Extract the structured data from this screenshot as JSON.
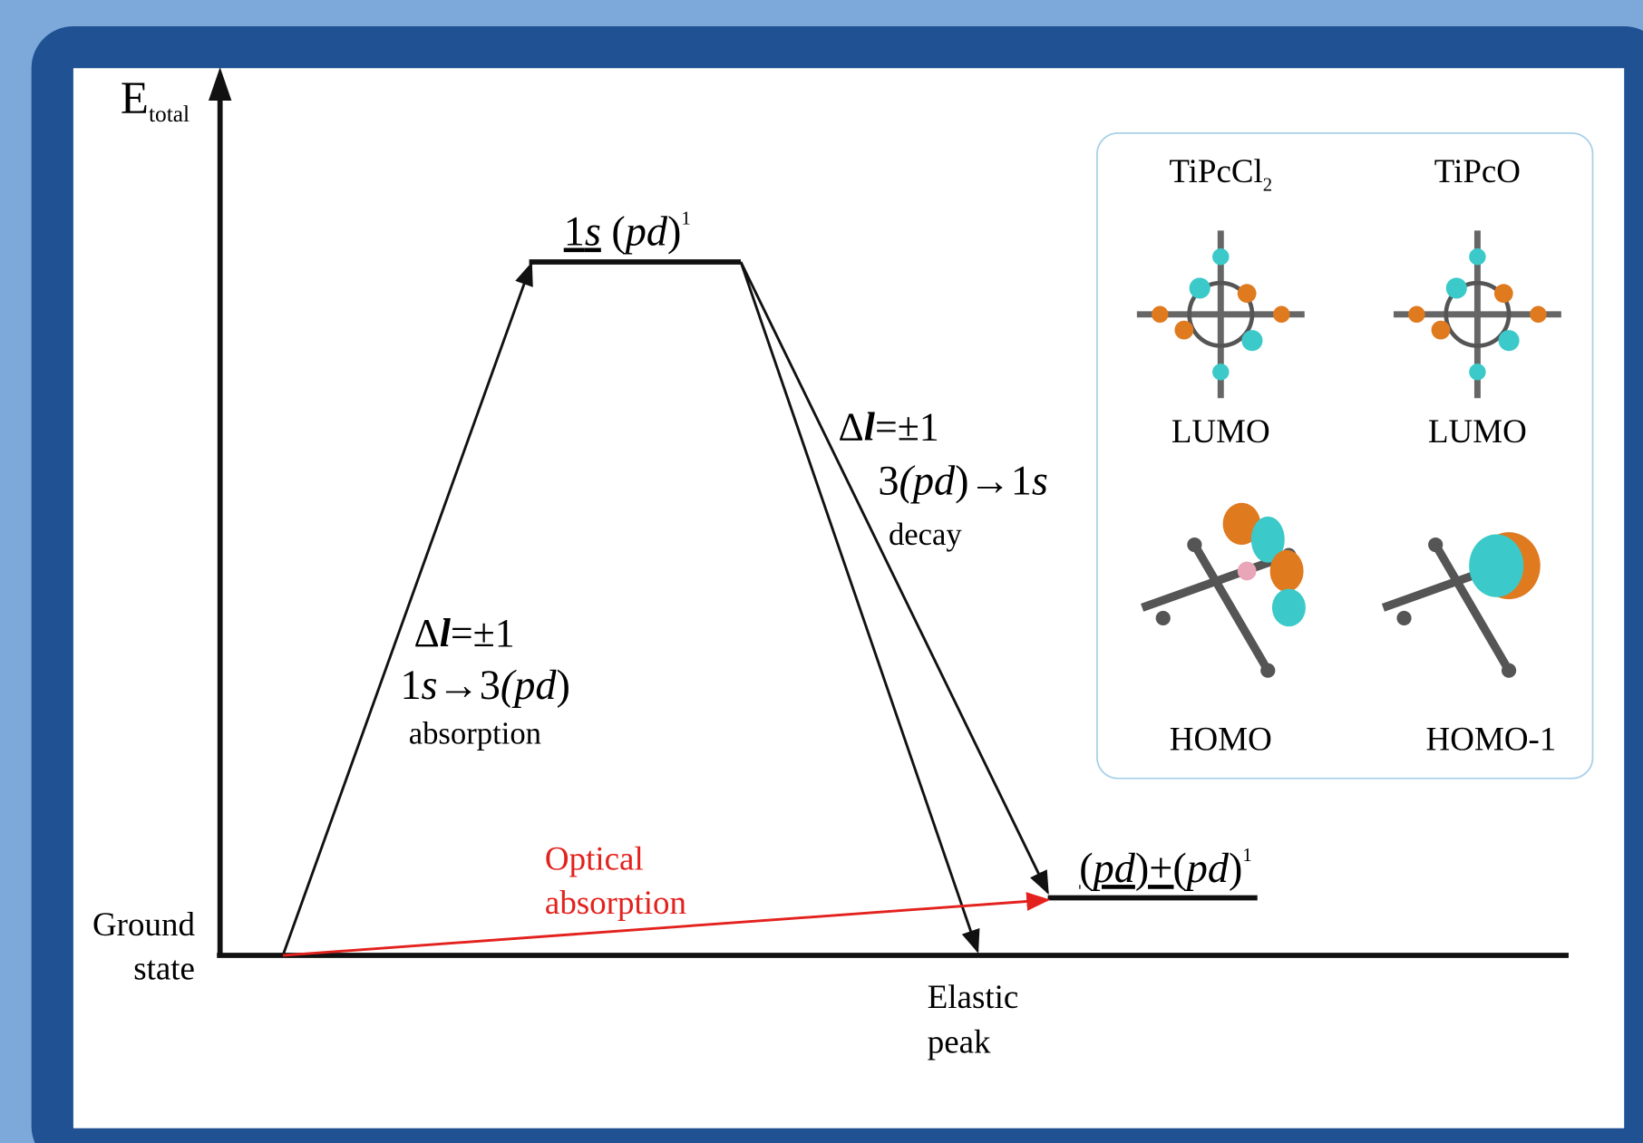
{
  "y_axis_label": {
    "main": "E",
    "sub": "total"
  },
  "ground_state": [
    "Ground",
    "state"
  ],
  "excited_level": [
    "1",
    "s",
    " (",
    "pd",
    ")",
    "1"
  ],
  "final_level": [
    "(",
    "pd",
    ")+(",
    "pd",
    ")",
    "1"
  ],
  "absorption": {
    "rule": [
      "Δ",
      "l",
      "=±1"
    ],
    "transition": [
      "1",
      "s",
      "→3",
      "(pd",
      ")"
    ],
    "caption": "absorption"
  },
  "decay": {
    "rule": [
      "Δ",
      "l",
      "=±1"
    ],
    "transition": [
      "3",
      "(pd",
      ")→1",
      "s"
    ],
    "caption": "decay"
  },
  "optical": [
    "Optical",
    "absorption"
  ],
  "elastic": [
    "Elastic",
    "peak"
  ],
  "inset": {
    "columns": [
      {
        "title": [
          "TiPcCl",
          "2"
        ],
        "orbitals": [
          "LUMO",
          "HOMO"
        ]
      },
      {
        "title": [
          "TiPcO"
        ],
        "orbitals": [
          "LUMO",
          "HOMO-1"
        ]
      }
    ]
  }
}
